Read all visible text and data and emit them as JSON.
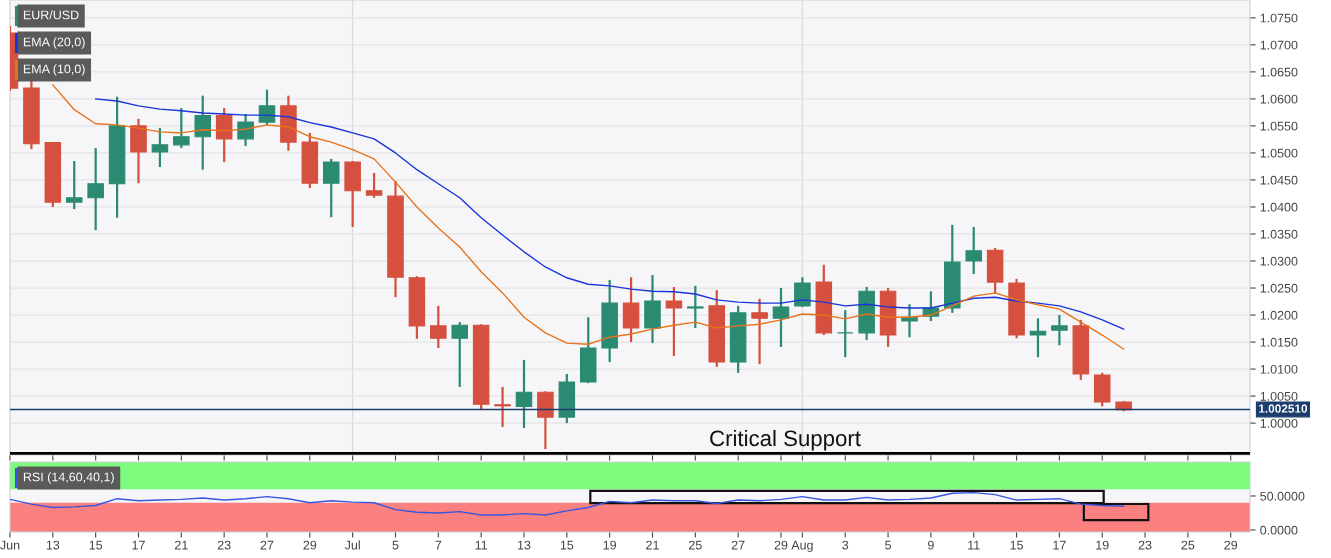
{
  "chart_data": [
    {
      "type": "candlestick",
      "categories": [
        "Jun",
        null,
        "13",
        null,
        "15",
        null,
        "17",
        null,
        "21",
        null,
        "23",
        null,
        "27",
        null,
        "29",
        null,
        "Jul",
        null,
        "5",
        null,
        "7",
        null,
        "11",
        null,
        "13",
        null,
        "15",
        null,
        "19",
        null,
        "21",
        null,
        "25",
        null,
        "27",
        null,
        "29",
        "Aug",
        null,
        "3",
        null,
        "5",
        null,
        "9",
        null,
        "11",
        null,
        "15",
        null,
        "17",
        null,
        "19",
        null,
        "23",
        null,
        "25",
        null,
        "29"
      ],
      "series": [
        {
          "name": "EUR/USD",
          "type": "candlestick",
          "color": "#2b8a72",
          "colors": [
            "#d5503e",
            "#d5503e",
            "#d5503e",
            "#2b8a72",
            "#2b8a72",
            "#2b8a72",
            "#d5503e",
            "#2b8a72",
            "#2b8a72",
            "#2b8a72",
            "#d5503e",
            "#2b8a72",
            "#2b8a72",
            "#d5503e",
            "#d5503e",
            "#2b8a72",
            "#d5503e",
            "#d5503e",
            "#d5503e",
            "#d5503e",
            "#d5503e",
            "#2b8a72",
            "#d5503e",
            "#d5503e",
            "#2b8a72",
            "#d5503e",
            "#2b8a72",
            "#2b8a72",
            "#2b8a72",
            "#d5503e",
            "#2b8a72",
            "#d5503e",
            "#2b8a72",
            "#d5503e",
            "#2b8a72",
            "#d5503e",
            "#2b8a72",
            "#2b8a72",
            "#d5503e",
            "#2b8a72",
            "#2b8a72",
            "#d5503e",
            "#2b8a72",
            "#2b8a72",
            "#2b8a72",
            "#2b8a72",
            "#d5503e",
            "#d5503e",
            "#2b8a72",
            "#2b8a72",
            "#d5503e",
            "#d5503e",
            "#d5503e",
            null,
            null,
            null,
            null,
            null
          ],
          "ohlc": [
            [
              1.0722,
              1.0735,
              1.0615,
              1.062
            ],
            [
              1.062,
              1.0633,
              1.0507,
              1.0517
            ],
            [
              1.0519,
              1.052,
              1.04,
              1.0409
            ],
            [
              1.0409,
              1.0485,
              1.0396,
              1.0417
            ],
            [
              1.0417,
              1.0509,
              1.0357,
              1.0443
            ],
            [
              1.0443,
              1.0604,
              1.038,
              1.055
            ],
            [
              1.055,
              1.0563,
              1.0444,
              1.0502
            ],
            [
              1.0502,
              1.0546,
              1.0474,
              1.0515
            ],
            [
              1.0515,
              1.0583,
              1.0509,
              1.053
            ],
            [
              1.053,
              1.0606,
              1.0469,
              1.0569
            ],
            [
              1.0569,
              1.0583,
              1.0483,
              1.0526
            ],
            [
              1.0526,
              1.0572,
              1.0513,
              1.0557
            ],
            [
              1.0557,
              1.0617,
              1.0552,
              1.0587
            ],
            [
              1.0587,
              1.0606,
              1.0504,
              1.052
            ],
            [
              1.052,
              1.0537,
              1.0435,
              1.0444
            ],
            [
              1.0444,
              1.0489,
              1.0381,
              1.0483
            ],
            [
              1.0483,
              1.0485,
              1.0363,
              1.043
            ],
            [
              1.043,
              1.0463,
              1.0417,
              1.0422
            ],
            [
              1.042,
              1.0448,
              1.0233,
              1.027
            ],
            [
              1.0269,
              1.0272,
              1.0156,
              1.018
            ],
            [
              1.018,
              1.0217,
              1.0139,
              1.0157
            ],
            [
              1.0157,
              1.0187,
              1.0067,
              1.0181
            ],
            [
              1.0181,
              1.0183,
              1.0026,
              1.0035
            ],
            [
              1.0034,
              1.0067,
              0.9993,
              1.0032
            ],
            [
              1.0031,
              1.0117,
              0.9991,
              1.0057
            ],
            [
              1.0057,
              1.0059,
              0.9952,
              1.0011
            ],
            [
              1.0011,
              1.0091,
              1.0,
              1.0076
            ],
            [
              1.0076,
              1.0196,
              1.0074,
              1.0139
            ],
            [
              1.0139,
              1.0265,
              1.0113,
              1.0222
            ],
            [
              1.0222,
              1.027,
              1.015,
              1.0176
            ],
            [
              1.0176,
              1.0274,
              1.0148,
              1.0226
            ],
            [
              1.0226,
              1.0252,
              1.0124,
              1.0213
            ],
            [
              1.0213,
              1.0254,
              1.0176,
              1.0215
            ],
            [
              1.0217,
              1.0246,
              1.0104,
              1.0113
            ],
            [
              1.0113,
              1.0217,
              1.0093,
              1.0204
            ],
            [
              1.0204,
              1.023,
              1.0109,
              1.0194
            ],
            [
              1.0194,
              1.025,
              1.0141,
              1.0215
            ],
            [
              1.0217,
              1.027,
              1.0215,
              1.0259
            ],
            [
              1.0261,
              1.0293,
              1.0163,
              1.0167
            ],
            [
              1.0167,
              1.0209,
              1.0122,
              1.0167
            ],
            [
              1.0167,
              1.0252,
              1.0154,
              1.0244
            ],
            [
              1.0244,
              1.025,
              1.0141,
              1.0163
            ],
            [
              1.0189,
              1.022,
              1.0159,
              1.0196
            ],
            [
              1.0198,
              1.0244,
              1.0189,
              1.0213
            ],
            [
              1.0213,
              1.0367,
              1.0204,
              1.0298
            ],
            [
              1.03,
              1.0363,
              1.0276,
              1.0319
            ],
            [
              1.032,
              1.0324,
              1.0239,
              1.0261
            ],
            [
              1.0259,
              1.0267,
              1.0157,
              1.0163
            ],
            [
              1.0163,
              1.0194,
              1.0122,
              1.017
            ],
            [
              1.0172,
              1.02,
              1.0144,
              1.018
            ],
            [
              1.018,
              1.0191,
              1.008,
              1.0091
            ],
            [
              1.0089,
              1.0093,
              1.0031,
              1.0039
            ],
            [
              1.0039,
              1.0041,
              1.0022,
              1.0025
            ],
            null,
            null,
            null,
            null,
            null
          ]
        },
        {
          "name": "EMA (20,0)",
          "type": "line",
          "color": "#1a35d8",
          "values": [
            null,
            null,
            null,
            null,
            1.06,
            1.0596,
            1.0587,
            1.0581,
            1.0578,
            1.0574,
            1.0572,
            1.057,
            1.057,
            1.0567,
            1.0556,
            1.0548,
            1.0537,
            1.0526,
            1.05,
            1.0469,
            1.0443,
            1.0417,
            1.038,
            1.0348,
            1.0317,
            1.0289,
            1.0269,
            1.0257,
            1.0254,
            1.0248,
            1.0244,
            1.0243,
            1.0239,
            1.0228,
            1.0224,
            1.0222,
            1.0222,
            1.0228,
            1.0224,
            1.0217,
            1.022,
            1.0215,
            1.0213,
            1.0213,
            1.0222,
            1.0231,
            1.0233,
            1.0226,
            1.0222,
            1.0217,
            1.0206,
            1.0191,
            1.0174,
            null,
            null,
            null,
            null,
            null
          ]
        },
        {
          "name": "EMA (10,0)",
          "type": "line",
          "color": "#e8731a",
          "values": [
            null,
            null,
            1.0626,
            1.058,
            1.0554,
            1.0552,
            1.0546,
            1.0539,
            1.0537,
            1.0543,
            1.0541,
            1.0544,
            1.0552,
            1.0548,
            1.053,
            1.052,
            1.0506,
            1.0489,
            1.0446,
            1.04,
            1.0361,
            1.0326,
            1.028,
            1.0241,
            1.0196,
            1.0167,
            1.0148,
            1.0146,
            1.0159,
            1.0165,
            1.0174,
            1.0181,
            1.0187,
            1.0176,
            1.018,
            1.0183,
            1.0191,
            1.0202,
            1.02,
            1.0193,
            1.0202,
            1.0196,
            1.0196,
            1.02,
            1.0217,
            1.0235,
            1.0241,
            1.0228,
            1.0219,
            1.0211,
            1.0187,
            1.0163,
            1.0137,
            null,
            null,
            null,
            null,
            null
          ]
        }
      ],
      "ylim": [
        0.9941,
        1.0783
      ],
      "yticks": [
        {
          "value": 1.0,
          "label": "1.0000"
        },
        {
          "value": 1.005,
          "label": "1.0050"
        },
        {
          "value": 1.01,
          "label": "1.0100"
        },
        {
          "value": 1.015,
          "label": "1.0150"
        },
        {
          "value": 1.02,
          "label": "1.0200"
        },
        {
          "value": 1.025,
          "label": "1.0250"
        },
        {
          "value": 1.03,
          "label": "1.0300"
        },
        {
          "value": 1.035,
          "label": "1.0350"
        },
        {
          "value": 1.04,
          "label": "1.0400"
        },
        {
          "value": 1.045,
          "label": "1.0450"
        },
        {
          "value": 1.05,
          "label": "1.0500"
        },
        {
          "value": 1.055,
          "label": "1.0550"
        },
        {
          "value": 1.06,
          "label": "1.0600"
        },
        {
          "value": 1.065,
          "label": "1.0650"
        },
        {
          "value": 1.07,
          "label": "1.0700"
        },
        {
          "value": 1.075,
          "label": "1.0750"
        }
      ],
      "ref_lines": [
        {
          "axis": "x",
          "value": "Jul",
          "color": "#dcdcdc"
        },
        {
          "axis": "x",
          "value": "Aug",
          "color": "#dcdcdc"
        },
        {
          "axis": "y",
          "value": 1.00251,
          "label": "1.002510",
          "color": "#1c3d6e"
        },
        {
          "axis": "y",
          "value": 0.9944,
          "color": "#000000"
        }
      ],
      "annotations": [
        {
          "text": "Critical Support",
          "y": 0.9944
        }
      ],
      "grid": "y",
      "legend": "top left",
      "tick_labels": "y"
    },
    {
      "type": "line",
      "categories": [
        "Jun",
        null,
        "13",
        null,
        "15",
        null,
        "17",
        null,
        "21",
        null,
        "23",
        null,
        "27",
        null,
        "29",
        null,
        "Jul",
        null,
        "5",
        null,
        "7",
        null,
        "11",
        null,
        "13",
        null,
        "15",
        null,
        "19",
        null,
        "21",
        null,
        "25",
        null,
        "27",
        null,
        "29",
        "Aug",
        null,
        "3",
        null,
        "5",
        null,
        "9",
        null,
        "11",
        null,
        "15",
        null,
        "17",
        null,
        "19",
        null,
        "23",
        null,
        "25",
        null,
        "29"
      ],
      "series": [
        {
          "name": "RSI (14,60,40,1)",
          "color": "#3a55e0",
          "values": [
            45,
            38,
            33,
            34,
            36,
            46,
            43,
            44,
            45,
            47,
            44,
            46,
            49,
            46,
            40,
            43,
            41,
            40,
            30,
            26,
            25,
            27,
            22,
            22,
            24,
            22,
            28,
            33,
            42,
            40,
            44,
            43,
            43,
            39,
            44,
            43,
            45,
            49,
            44,
            44,
            48,
            44,
            45,
            47,
            54,
            55,
            52,
            44,
            45,
            46,
            38,
            36,
            35,
            null,
            null,
            null,
            null,
            null
          ]
        }
      ],
      "ylim": [
        -3,
        100
      ],
      "yticks": [
        {
          "value": 0,
          "label": "0.0000"
        },
        {
          "value": 50,
          "label": "50.0000"
        }
      ],
      "bands": [
        {
          "axis": "y",
          "from": 60,
          "to": 100,
          "color": "#7dfb7d"
        },
        {
          "axis": "y",
          "from": -3,
          "to": 40,
          "color": "#fb8080"
        }
      ],
      "grid": false,
      "legend": "top left"
    }
  ]
}
